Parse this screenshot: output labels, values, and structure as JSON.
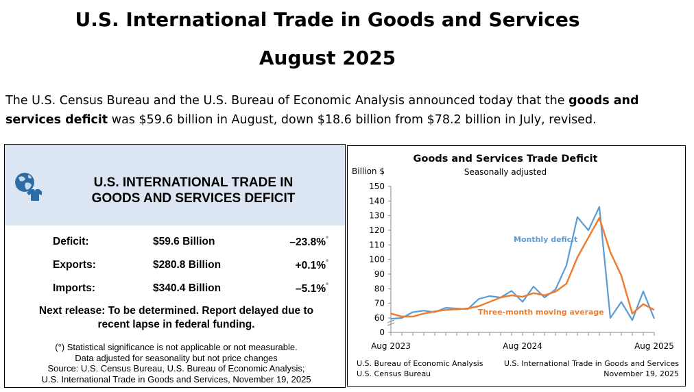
{
  "header": {
    "title_line1": "U.S. International Trade in Goods and Services",
    "title_line2": "August 2025"
  },
  "intro": {
    "part1": "The U.S. Census Bureau and the U.S. Bureau of Economic Analysis announced today that the ",
    "bold": "goods and services deficit",
    "part2": " was $59.6 billion in August, down $18.6 billion from $78.2 billion in July, revised."
  },
  "panel": {
    "title_line1": "U.S. INTERNATIONAL TRADE IN",
    "title_line2": "GOODS AND SERVICES DEFICIT",
    "icon": "globe-shirt-icon",
    "stats": [
      {
        "label": "Deficit:",
        "value": "$59.6 Billion",
        "change": "–23.8%",
        "mark": "°"
      },
      {
        "label": "Exports:",
        "value": "$280.8 Billion",
        "change": "+0.1%",
        "mark": "°"
      },
      {
        "label": "Imports:",
        "value": "$340.4 Billion",
        "change": "–5.1%",
        "mark": "°"
      }
    ],
    "release_line1": "Next release: To be determined. Report delayed due to",
    "release_line2": "recent lapse in federal funding.",
    "note_line1": "(°) Statistical significance is not applicable or not measurable.",
    "note_line2": "Data adjusted for seasonality but not price changes",
    "note_line3": "Source: U.S. Census Bureau, U.S. Bureau of Economic Analysis;",
    "note_line4": "U.S. International Trade in Goods and Services, November 19, 2025"
  },
  "chart_data": {
    "type": "line",
    "title": "Goods and Services Trade Deficit",
    "subtitle": "Seasonally adjusted",
    "ylabel": "Billion $",
    "ylim": [
      0,
      150
    ],
    "yticks": [
      0,
      60,
      70,
      80,
      90,
      100,
      110,
      120,
      130,
      140,
      150
    ],
    "x_tick_labels": [
      "Aug 2023",
      "Aug 2024",
      "Aug 2025"
    ],
    "x": [
      "Aug 2023",
      "Sep 2023",
      "Oct 2023",
      "Nov 2023",
      "Dec 2023",
      "Jan 2024",
      "Feb 2024",
      "Mar 2024",
      "Apr 2024",
      "May 2024",
      "Jun 2024",
      "Jul 2024",
      "Aug 2024",
      "Sep 2024",
      "Oct 2024",
      "Nov 2024",
      "Dec 2024",
      "Jan 2025",
      "Feb 2025",
      "Mar 2025",
      "Apr 2025",
      "May 2025",
      "Jun 2025",
      "Jul 2025",
      "Aug 2025"
    ],
    "series": [
      {
        "name": "Monthly deficit",
        "color": "#5b9bd5",
        "values": [
          59.5,
          60,
          64,
          65,
          64,
          67,
          66.5,
          66,
          73,
          75,
          74,
          78.5,
          71,
          81.5,
          74,
          79.5,
          96,
          129,
          120,
          136,
          60,
          71,
          58.5,
          78.2,
          59.6
        ]
      },
      {
        "name": "Three-month moving average",
        "color": "#ed7d31",
        "values": [
          63,
          61,
          61,
          63,
          64.5,
          65.5,
          66,
          66.5,
          68,
          71,
          74,
          75.5,
          74.5,
          77,
          75.5,
          78,
          83.5,
          101.5,
          115,
          128.5,
          105,
          89,
          63,
          69.5,
          65.5
        ]
      }
    ],
    "source_left_1": "U.S. Bureau of Economic Analysis",
    "source_left_2": "U.S. Census Bureau",
    "source_right_1": "U.S. International Trade in Goods and Services",
    "source_right_2": "November 19, 2025"
  }
}
